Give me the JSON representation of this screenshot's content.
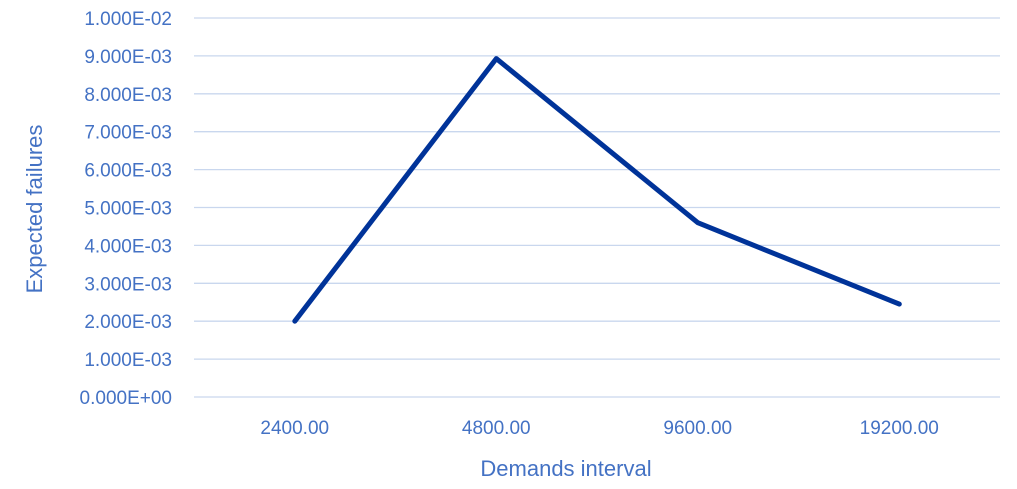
{
  "chart_data": {
    "type": "line",
    "title": "",
    "xlabel": "Demands interval",
    "ylabel": "Expected failures",
    "categories": [
      "2400.00",
      "4800.00",
      "9600.00",
      "19200.00"
    ],
    "series": [
      {
        "values": [
          0.002,
          0.00893,
          0.0046,
          0.00245
        ]
      }
    ],
    "ylim": [
      0,
      0.01
    ],
    "y_ticks": [
      "0.000E+00",
      "1.000E-03",
      "2.000E-03",
      "3.000E-03",
      "4.000E-03",
      "5.000E-03",
      "6.000E-03",
      "7.000E-03",
      "8.000E-03",
      "9.000E-03",
      "1.000E-02"
    ],
    "grid": true,
    "legend": "none",
    "colors": {
      "line": "#003399",
      "text": "#4472C4",
      "grid": "#C9D7EE"
    }
  }
}
